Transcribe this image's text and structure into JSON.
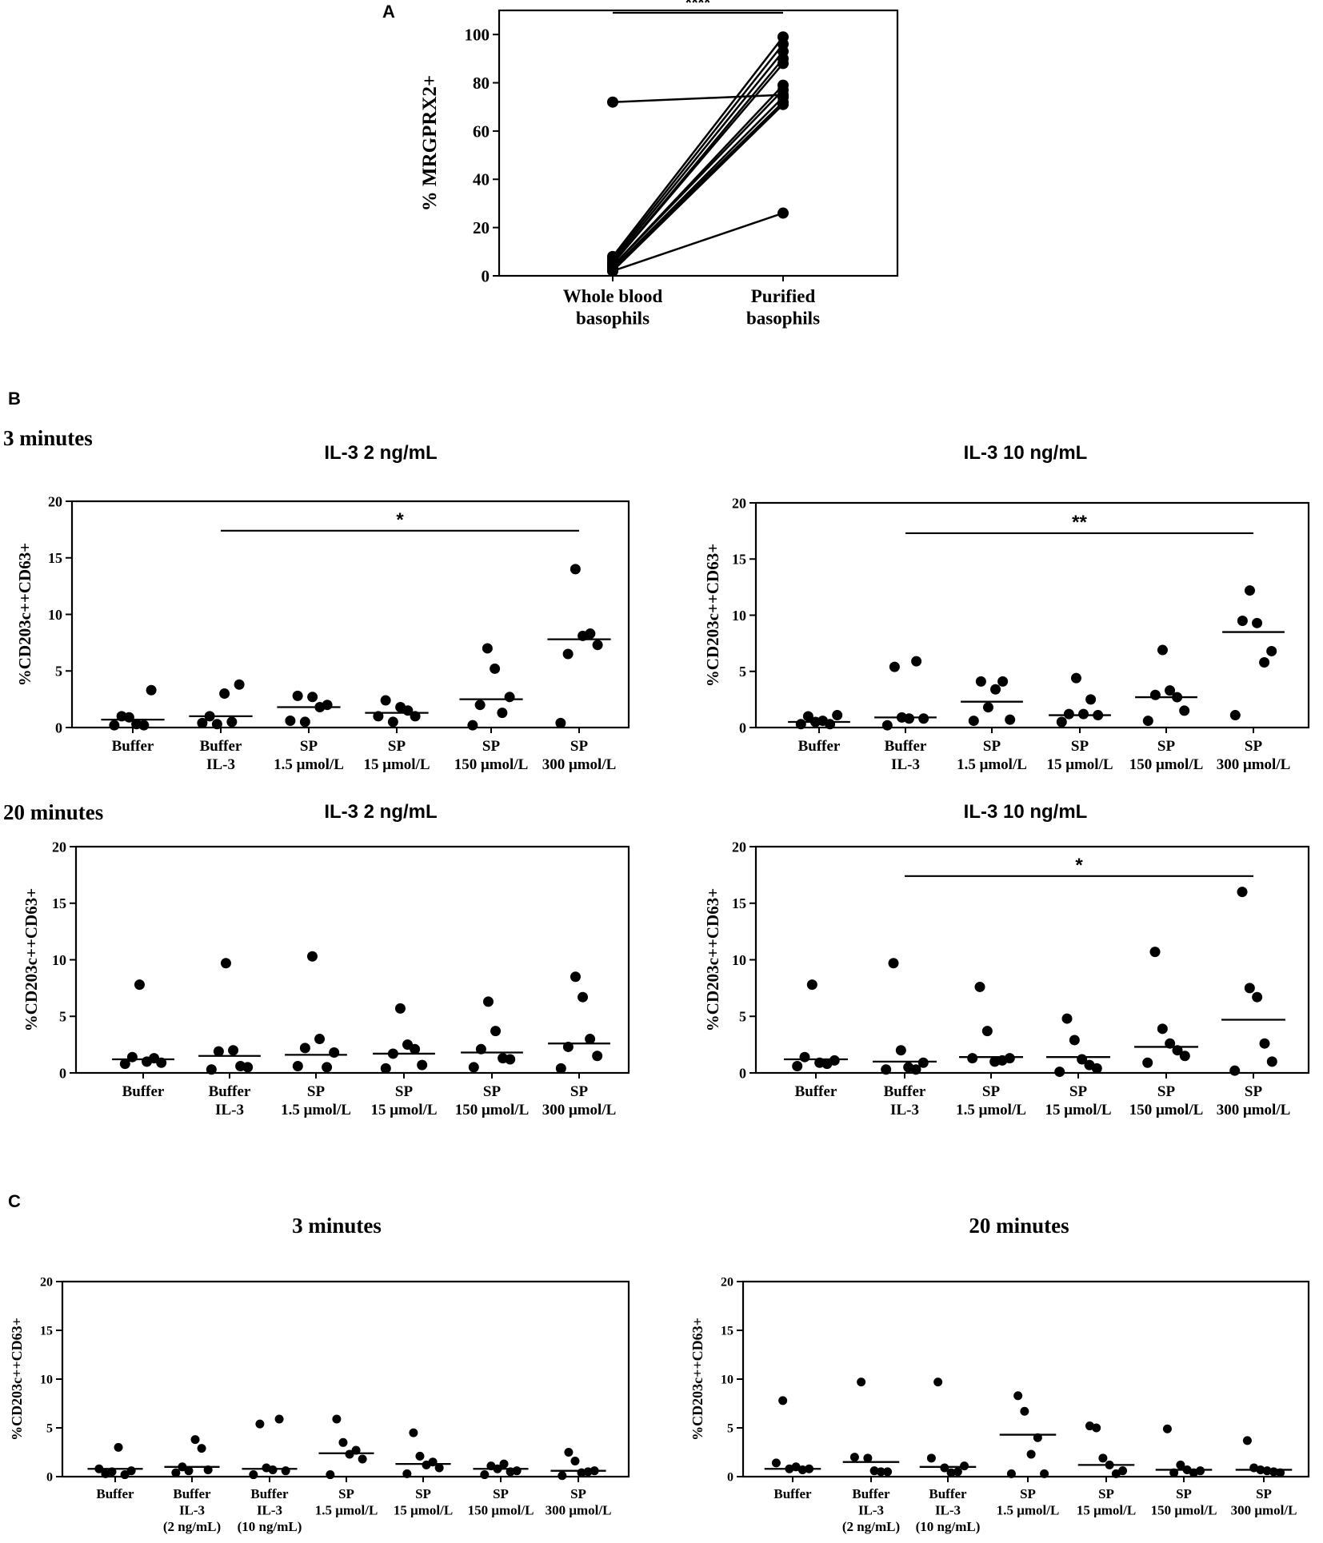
{
  "figure": {
    "panel_labels": {
      "a": "A",
      "b": "B",
      "c": "C"
    },
    "row_labels": {
      "three_min": "3 minutes",
      "twenty_min": "20 minutes"
    },
    "common_ylabel": "%CD203c++CD63+",
    "colors": {
      "ink": "#000000",
      "background": "#ffffff"
    }
  },
  "chart_data": [
    {
      "id": "A",
      "type": "line",
      "title": "",
      "ylabel": "% MRGPRX2+",
      "ylim": [
        0,
        110
      ],
      "yticks": [
        "0",
        "20",
        "40",
        "60",
        "80",
        "100"
      ],
      "categories": [
        "Whole blood basophils",
        "Purified basophils"
      ],
      "category_lines": [
        [
          "Whole blood",
          "basophils"
        ],
        [
          "Purified",
          "basophils"
        ]
      ],
      "pairs": [
        [
          72,
          75
        ],
        [
          8,
          99
        ],
        [
          7,
          96
        ],
        [
          6,
          93
        ],
        [
          5,
          90
        ],
        [
          5,
          88
        ],
        [
          4,
          79
        ],
        [
          4,
          77
        ],
        [
          3,
          74
        ],
        [
          3,
          72
        ],
        [
          2,
          71
        ],
        [
          2,
          26
        ]
      ],
      "significance": {
        "label": "****",
        "from": 0,
        "to": 1,
        "y": 109
      }
    },
    {
      "id": "B1",
      "type": "scatter",
      "title": "IL-3 2 ng/mL",
      "ylabel": "%CD203c++CD63+",
      "ylim": [
        0,
        20
      ],
      "yticks": [
        "0",
        "5",
        "10",
        "15",
        "20"
      ],
      "categories": [
        [
          "Buffer"
        ],
        [
          "Buffer",
          "IL-3"
        ],
        [
          "SP",
          "1.5 μmol/L"
        ],
        [
          "SP",
          "15 μmol/L"
        ],
        [
          "SP",
          "150 μmol/L"
        ],
        [
          "SP",
          "300 μmol/L"
        ]
      ],
      "points": [
        [
          0.2,
          1.0,
          0.9,
          0.3,
          0.2,
          3.3
        ],
        [
          0.4,
          1.0,
          0.3,
          3.0,
          0.5,
          3.8
        ],
        [
          0.6,
          2.8,
          0.5,
          2.7,
          1.8,
          2.0
        ],
        [
          1.0,
          2.4,
          0.5,
          1.8,
          1.5,
          1.0
        ],
        [
          0.2,
          2.0,
          7.0,
          5.2,
          1.3,
          2.7
        ],
        [
          0.4,
          6.5,
          14.0,
          8.1,
          8.3,
          7.3
        ]
      ],
      "medians": [
        0.7,
        1.0,
        1.8,
        1.3,
        2.5,
        7.8
      ],
      "significance": {
        "label": "*",
        "from": 1,
        "to": 5,
        "y": 17.4
      }
    },
    {
      "id": "B2",
      "type": "scatter",
      "title": "IL-3 10 ng/mL",
      "ylabel": "%CD203c++CD63+",
      "ylim": [
        0,
        20
      ],
      "yticks": [
        "0",
        "5",
        "10",
        "15",
        "20"
      ],
      "categories": [
        [
          "Buffer"
        ],
        [
          "Buffer",
          "IL-3"
        ],
        [
          "SP",
          "1.5 μmol/L"
        ],
        [
          "SP",
          "15 μmol/L"
        ],
        [
          "SP",
          "150 μmol/L"
        ],
        [
          "SP",
          "300 μmol/L"
        ]
      ],
      "points": [
        [
          0.3,
          1.0,
          0.5,
          0.6,
          0.3,
          1.1
        ],
        [
          0.2,
          5.4,
          0.9,
          0.8,
          5.9,
          0.8
        ],
        [
          0.6,
          4.1,
          1.8,
          3.4,
          4.1,
          0.7
        ],
        [
          0.5,
          1.2,
          4.4,
          1.2,
          2.5,
          1.1
        ],
        [
          0.6,
          2.9,
          6.9,
          3.3,
          2.7,
          1.5
        ],
        [
          1.1,
          9.5,
          12.2,
          9.3,
          5.8,
          6.8
        ]
      ],
      "medians": [
        0.5,
        0.9,
        2.3,
        1.1,
        2.7,
        8.5
      ],
      "significance": {
        "label": "**",
        "from": 1,
        "to": 5,
        "y": 17.3
      }
    },
    {
      "id": "B3",
      "type": "scatter",
      "title": "IL-3 2 ng/mL",
      "ylabel": "%CD203c++CD63+",
      "ylim": [
        0,
        20
      ],
      "yticks": [
        "0",
        "5",
        "10",
        "15",
        "20"
      ],
      "categories": [
        [
          "Buffer"
        ],
        [
          "Buffer",
          "IL-3"
        ],
        [
          "SP",
          "1.5 μmol/L"
        ],
        [
          "SP",
          "15 μmol/L"
        ],
        [
          "SP",
          "150 μmol/L"
        ],
        [
          "SP",
          "300 μmol/L"
        ]
      ],
      "points": [
        [
          0.8,
          1.4,
          7.8,
          1.0,
          1.3,
          0.9
        ],
        [
          0.3,
          1.9,
          9.7,
          2.0,
          0.6,
          0.5
        ],
        [
          0.6,
          2.2,
          10.3,
          3.0,
          0.5,
          1.8
        ],
        [
          0.4,
          1.7,
          5.7,
          2.5,
          2.1,
          0.7
        ],
        [
          0.5,
          2.1,
          6.3,
          3.7,
          1.3,
          1.2
        ],
        [
          0.4,
          2.3,
          8.5,
          6.7,
          3.0,
          1.5
        ]
      ],
      "medians": [
        1.2,
        1.5,
        1.6,
        1.7,
        1.8,
        2.6
      ],
      "significance": null
    },
    {
      "id": "B4",
      "type": "scatter",
      "title": "IL-3 10 ng/mL",
      "ylabel": "%CD203c++CD63+",
      "ylim": [
        0,
        20
      ],
      "yticks": [
        "0",
        "5",
        "10",
        "15",
        "20"
      ],
      "categories": [
        [
          "Buffer"
        ],
        [
          "Buffer",
          "IL-3"
        ],
        [
          "SP",
          "1.5 μmol/L"
        ],
        [
          "SP",
          "15 μmol/L"
        ],
        [
          "SP",
          "150 μmol/L"
        ],
        [
          "SP",
          "300 μmol/L"
        ]
      ],
      "points": [
        [
          0.6,
          1.4,
          7.8,
          0.9,
          0.8,
          1.1
        ],
        [
          0.3,
          9.7,
          2.0,
          0.5,
          0.3,
          0.9
        ],
        [
          1.3,
          7.6,
          3.7,
          1.0,
          1.1,
          1.3
        ],
        [
          0.1,
          4.8,
          2.9,
          1.2,
          0.7,
          0.4
        ],
        [
          0.9,
          10.7,
          3.9,
          2.6,
          2.0,
          1.5
        ],
        [
          0.2,
          16.0,
          7.5,
          6.7,
          2.6,
          1.0
        ]
      ],
      "medians": [
        1.2,
        1.0,
        1.4,
        1.4,
        2.3,
        4.7
      ],
      "significance": {
        "label": "*",
        "from": 1,
        "to": 5,
        "y": 17.4
      }
    },
    {
      "id": "C1",
      "type": "scatter",
      "title": "3 minutes",
      "ylabel": "%CD203c++CD63+",
      "ylim": [
        0,
        20
      ],
      "yticks": [
        "0",
        "5",
        "10",
        "15",
        "20"
      ],
      "categories": [
        [
          "Buffer"
        ],
        [
          "Buffer",
          "IL-3",
          "(2 ng/mL)"
        ],
        [
          "Buffer",
          "IL-3",
          "(10 ng/mL)"
        ],
        [
          "SP",
          "1.5 μmol/L"
        ],
        [
          "SP",
          "15 μmol/L"
        ],
        [
          "SP",
          "150 μmol/L"
        ],
        [
          "SP",
          "300 μmol/L"
        ]
      ],
      "points": [
        [
          0.8,
          0.3,
          0.5,
          3.0,
          0.2,
          0.6
        ],
        [
          0.4,
          1.0,
          0.6,
          3.8,
          2.9,
          0.7
        ],
        [
          0.2,
          5.4,
          0.9,
          0.7,
          5.9,
          0.6
        ],
        [
          0.2,
          5.9,
          3.5,
          2.3,
          2.7,
          1.8
        ],
        [
          0.3,
          4.5,
          2.1,
          1.2,
          1.5,
          0.9
        ],
        [
          0.2,
          1.1,
          0.8,
          1.3,
          0.5,
          0.6
        ],
        [
          0.1,
          2.5,
          1.6,
          0.4,
          0.5,
          0.6
        ]
      ],
      "medians": [
        0.8,
        1.0,
        0.8,
        2.4,
        1.3,
        0.8,
        0.6
      ],
      "significance": null
    },
    {
      "id": "C2",
      "type": "scatter",
      "title": "20 minutes",
      "ylabel": "%CD203c++CD63+",
      "ylim": [
        0,
        20
      ],
      "yticks": [
        "0",
        "5",
        "10",
        "15",
        "20"
      ],
      "categories": [
        [
          "Buffer"
        ],
        [
          "Buffer",
          "IL-3",
          "(2 ng/mL)"
        ],
        [
          "Buffer",
          "IL-3",
          "(10 ng/mL)"
        ],
        [
          "SP",
          "1.5 μmol/L"
        ],
        [
          "SP",
          "15 μmol/L"
        ],
        [
          "SP",
          "150 μmol/L"
        ],
        [
          "SP",
          "300 μmol/L"
        ]
      ],
      "points": [
        [
          1.4,
          7.8,
          0.8,
          1.0,
          0.7,
          0.8
        ],
        [
          2.0,
          9.7,
          1.9,
          0.6,
          0.5,
          0.5
        ],
        [
          1.9,
          9.7,
          0.9,
          0.4,
          0.5,
          1.1
        ],
        [
          0.3,
          8.3,
          6.7,
          2.3,
          4.0,
          0.3
        ],
        [
          5.2,
          5.0,
          1.9,
          1.2,
          0.3,
          0.6
        ],
        [
          4.9,
          0.4,
          1.2,
          0.7,
          0.4,
          0.6
        ],
        [
          3.7,
          0.9,
          0.7,
          0.6,
          0.5,
          0.4
        ]
      ],
      "medians": [
        0.8,
        1.5,
        1.0,
        4.3,
        1.2,
        0.7,
        0.7
      ],
      "significance": null
    }
  ]
}
